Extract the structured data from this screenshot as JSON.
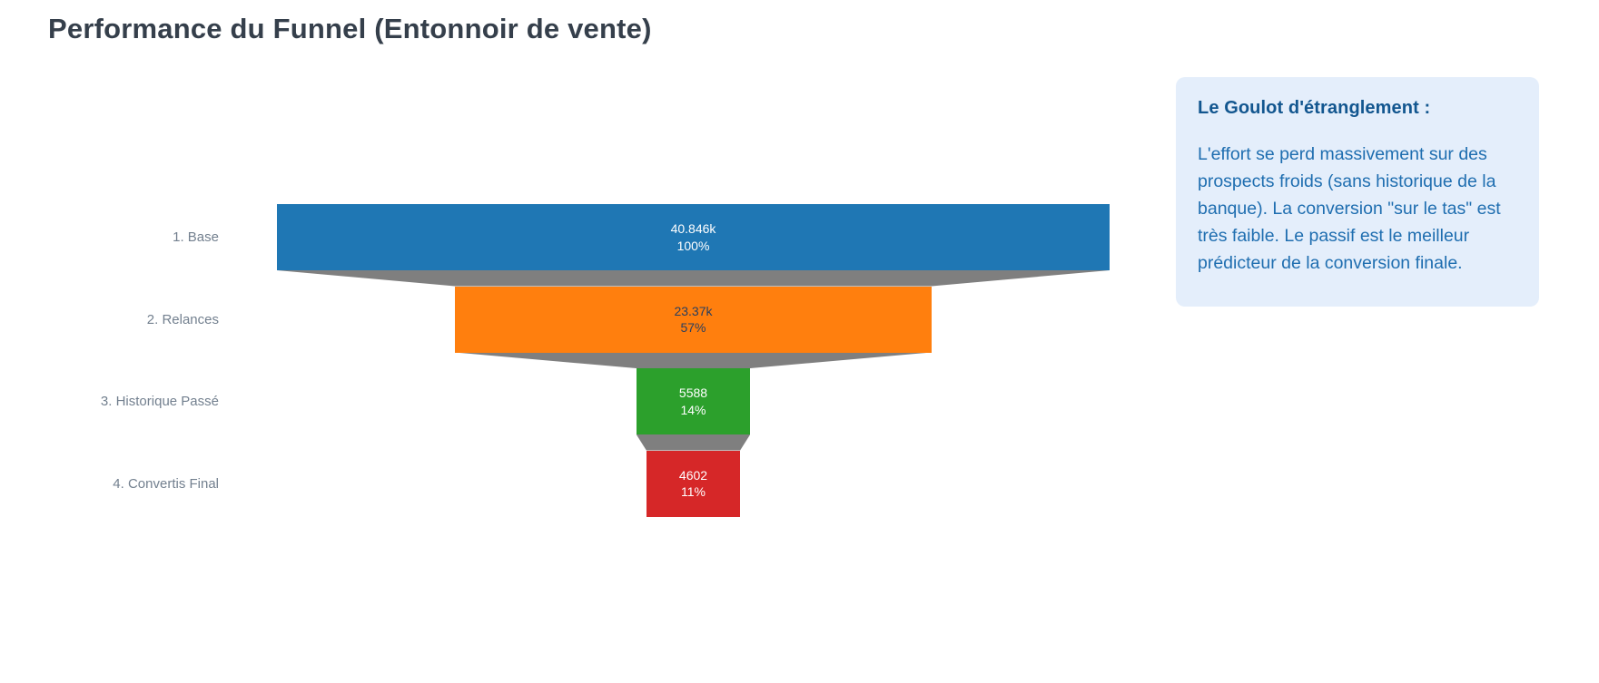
{
  "page": {
    "title": "Performance du Funnel (Entonnoir de vente)"
  },
  "chart_data": {
    "type": "funnel",
    "title": "Performance du Funnel (Entonnoir de vente)",
    "orientation": "horizontal centered funnel, top to bottom",
    "categories": [
      "1. Base",
      "2. Relances",
      "3. Historique Passé",
      "4. Convertis Final"
    ],
    "values": [
      40846,
      23370,
      5588,
      4602
    ],
    "stages": [
      {
        "label": "1. Base",
        "value": 40846,
        "value_label": "40.846k",
        "percent_label": "100%",
        "percent_of_initial": 100,
        "color": "#1f77b4",
        "text_color": "#ffffff"
      },
      {
        "label": "2. Relances",
        "value": 23370,
        "value_label": "23.37k",
        "percent_label": "57%",
        "percent_of_initial": 57,
        "color": "#ff7f0e",
        "text_color": "#2a3f5f"
      },
      {
        "label": "3. Historique Passé",
        "value": 5588,
        "value_label": "5588",
        "percent_label": "14%",
        "percent_of_initial": 14,
        "color": "#2ca02c",
        "text_color": "#ffffff"
      },
      {
        "label": "4. Convertis Final",
        "value": 4602,
        "value_label": "4602",
        "percent_label": "11%",
        "percent_of_initial": 11,
        "color": "#d62728",
        "text_color": "#ffffff"
      }
    ],
    "connector_color": "#7f7f7f",
    "legend": "off",
    "grid": "off"
  },
  "callout": {
    "title": "Le Goulot d'étranglement :",
    "body": "L'effort se perd massivement sur des prospects froids (sans historique de la banque). La conversion \"sur le tas\" est très faible. Le passif est le meilleur prédicteur de la conversion finale.",
    "background": "#e4eefb",
    "title_color": "#12568f",
    "body_color": "#1f6eb0"
  }
}
